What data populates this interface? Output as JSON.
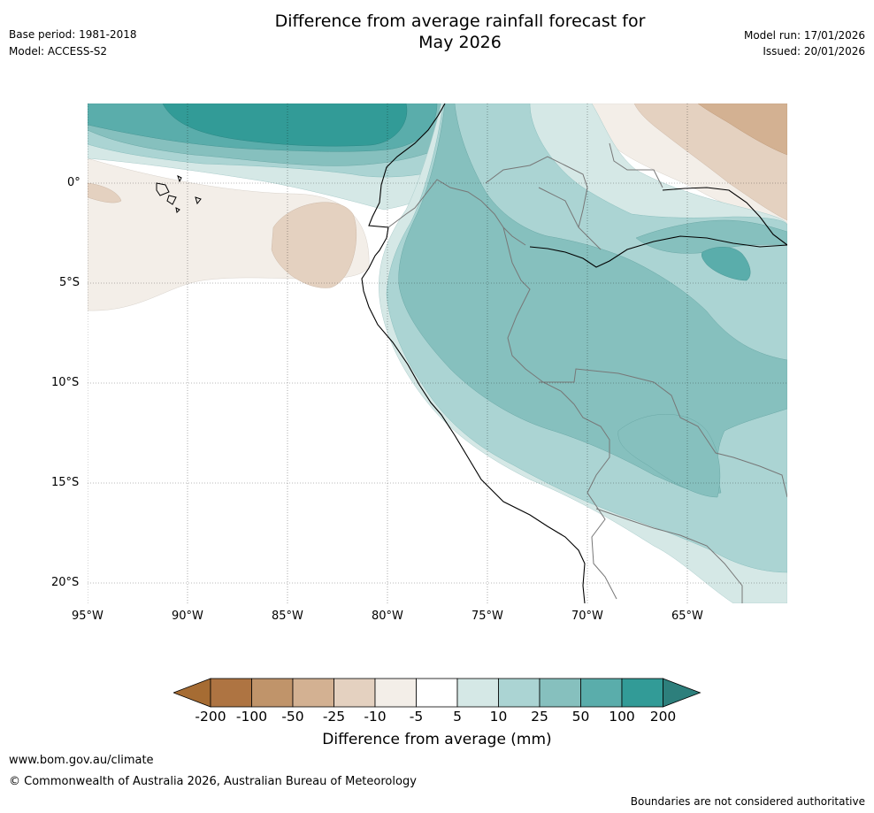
{
  "header": {
    "base_period": "Base period: 1981-2018",
    "model": "Model: ACCESS-S2",
    "title_line1": "Difference from average rainfall forecast for",
    "title_line2": "May 2026",
    "model_run": "Model run: 17/01/2026",
    "issued": "Issued: 20/01/2026"
  },
  "map": {
    "lat_labels": [
      "0°",
      "5°S",
      "10°S",
      "15°S",
      "20°S"
    ],
    "lon_labels": [
      "95°W",
      "90°W",
      "85°W",
      "80°W",
      "75°W",
      "70°W",
      "65°W"
    ]
  },
  "colorbar": {
    "ticks": [
      "-200",
      "-100",
      "-50",
      "-25",
      "-10",
      "-5",
      "5",
      "10",
      "25",
      "50",
      "100",
      "200"
    ],
    "colors": [
      "#a66c33",
      "#ae7442",
      "#c0946a",
      "#d3b192",
      "#e4d1c0",
      "#f3eee8",
      "#ffffff",
      "#d5e8e6",
      "#abd4d3",
      "#86c0be",
      "#5aadab",
      "#329b97",
      "#2d7f7c"
    ],
    "label": "Difference from average (mm)"
  },
  "footer": {
    "url": "www.bom.gov.au/climate",
    "copyright": "© Commonwealth of Australia 2026, Australian Bureau of Meteorology",
    "disclaimer": "Boundaries are not considered authoritative"
  }
}
